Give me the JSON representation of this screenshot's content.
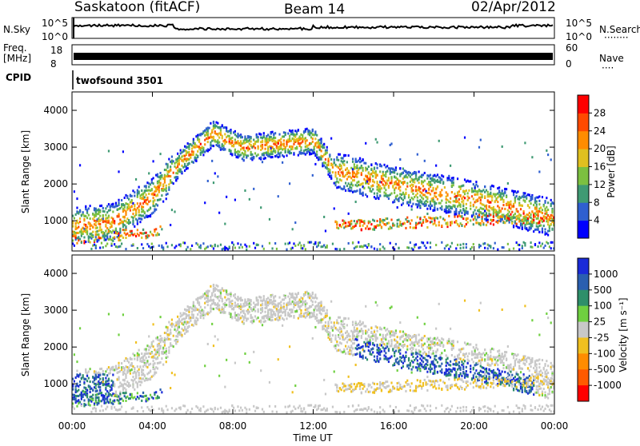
{
  "header": {
    "station": "Saskatoon (fitACF)",
    "beam": "Beam 14",
    "date": "02/Apr/2012"
  },
  "noise_panel": {
    "left_label": "N.Sky",
    "right_label": "N.Search",
    "ticks_left": [
      "10^5",
      "10^0"
    ],
    "ticks_right": [
      "10^5",
      "10^0"
    ]
  },
  "freq_panel": {
    "left_label_line1": "Freq.",
    "left_label_line2": "[MHz]",
    "right_label": "Nave",
    "ticks_left": [
      "18",
      "8"
    ],
    "ticks_right": [
      "60",
      "0"
    ]
  },
  "cpid_panel": {
    "label": "CPID",
    "text": "twofsound 3501"
  },
  "chart_data": [
    {
      "type": "heatmap",
      "title": "Power",
      "ylabel": "Slant Range [km]",
      "yticks": [
        "1000",
        "2000",
        "3000",
        "4000"
      ],
      "ylim": [
        180,
        4500
      ],
      "xlim": [
        0,
        24
      ],
      "colorbar_label": "Power [dB]",
      "colorbar_ticks": [
        "4",
        "8",
        "12",
        "16",
        "20",
        "24",
        "28"
      ],
      "colorbar_colors": [
        "#0000ff",
        "#2f5fd0",
        "#3f9a73",
        "#7cc040",
        "#e0c020",
        "#ff8c00",
        "#ff4a00",
        "#ff0000"
      ],
      "scatter_band": [
        {
          "t": 0.0,
          "r": 900
        },
        {
          "t": 2.0,
          "r": 1000
        },
        {
          "t": 4.0,
          "r": 1700
        },
        {
          "t": 5.5,
          "r": 2700
        },
        {
          "t": 7.0,
          "r": 3400
        },
        {
          "t": 8.5,
          "r": 3000
        },
        {
          "t": 10.0,
          "r": 3100
        },
        {
          "t": 12.0,
          "r": 3200
        },
        {
          "t": 13.0,
          "r": 2400
        },
        {
          "t": 16.0,
          "r": 2000
        },
        {
          "t": 20.0,
          "r": 1600
        },
        {
          "t": 24.0,
          "r": 1100
        }
      ]
    },
    {
      "type": "heatmap",
      "title": "Velocity",
      "ylabel": "Slant Range [km]",
      "yticks": [
        "1000",
        "2000",
        "3000",
        "4000"
      ],
      "ylim": [
        180,
        4500
      ],
      "xlim": [
        0,
        24
      ],
      "xlabel": "Time UT",
      "xticks": [
        "00:00",
        "04:00",
        "08:00",
        "12:00",
        "16:00",
        "20:00",
        "00:00"
      ],
      "colorbar_label": "Velocity [m s⁻¹]",
      "colorbar_ticks": [
        "1000",
        "500",
        "100",
        "25",
        "-25",
        "-100",
        "-500",
        "-1000"
      ],
      "colorbar_colors": [
        "#1a2bd8",
        "#2a5fb0",
        "#2e8f6a",
        "#6fd040",
        "#c8c8c8",
        "#f0c020",
        "#ff8c00",
        "#ff5a00",
        "#ff0000"
      ]
    }
  ]
}
